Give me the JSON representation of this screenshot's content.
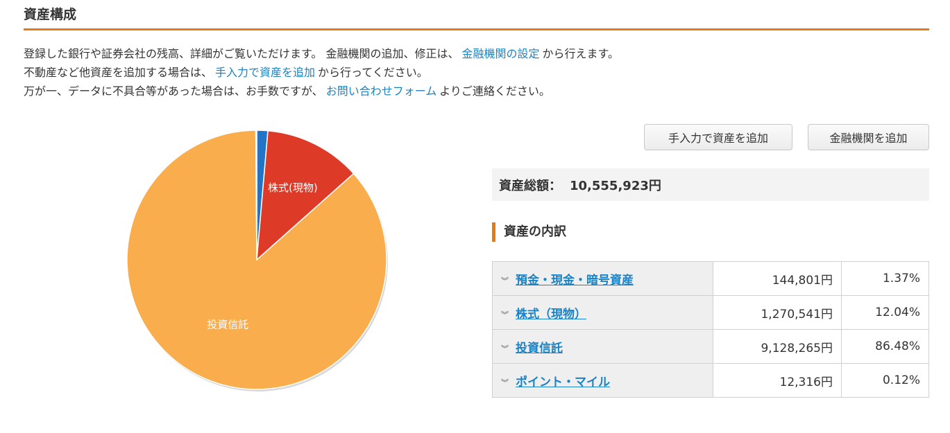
{
  "page": {
    "title": "資産構成"
  },
  "intro": {
    "line1_a": "登録した銀行や証券会社の残高、詳細がご覧いただけます。 金融機関の追加、修正は、",
    "line1_link": "金融機関の設定",
    "line1_b": "から行えます。",
    "line2_a": "不動産など他資産を追加する場合は、",
    "line2_link": "手入力で資産を追加",
    "line2_b": "から行ってください。",
    "line3_a": "万が一、データに不具合等があった場合は、お手数ですが、",
    "line3_link": "お問い合わせフォーム",
    "line3_b": "よりご連絡ください。"
  },
  "buttons": {
    "add_manual": "手入力で資産を追加",
    "add_institution": "金融機関を追加"
  },
  "total": {
    "label": "資産総額：",
    "amount": "10,555,923円"
  },
  "breakdown": {
    "heading": "資産の内訳",
    "rows": [
      {
        "category": "預金・現金・暗号資産",
        "amount": "144,801円",
        "percent": "1.37%"
      },
      {
        "category": "株式（現物）",
        "amount": "1,270,541円",
        "percent": "12.04%"
      },
      {
        "category": "投資信託",
        "amount": "9,128,265円",
        "percent": "86.48%"
      },
      {
        "category": "ポイント・マイル",
        "amount": "12,316円",
        "percent": "0.12%"
      }
    ]
  },
  "chart_data": {
    "type": "pie",
    "slices": [
      {
        "label": "",
        "category": "預金・現金・暗号資産",
        "value": 1.37,
        "color": "#2274c9"
      },
      {
        "label": "株式(現物)",
        "category": "株式（現物）",
        "value": 12.04,
        "color": "#dd3a28"
      },
      {
        "label": "投資信託",
        "category": "投資信託",
        "value": 86.48,
        "color": "#f9ad4c"
      },
      {
        "label": "",
        "category": "ポイント・マイル",
        "value": 0.12,
        "color": "#f5e0a6"
      }
    ]
  },
  "colors": {
    "accent": "#e07b16",
    "link": "#1a83c5"
  },
  "icons": {
    "row_expand": "double-chevron-down-icon"
  }
}
